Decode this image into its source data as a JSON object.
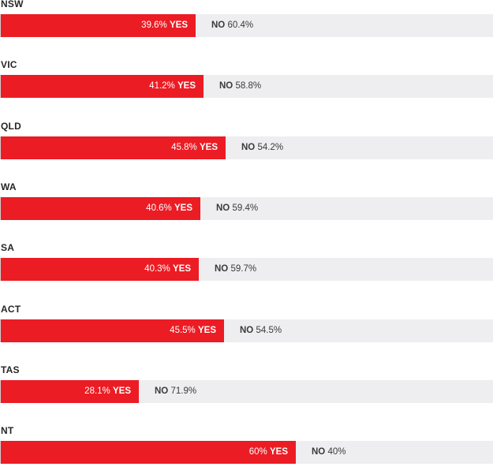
{
  "chart_data": {
    "type": "bar",
    "orientation": "horizontal-stacked",
    "xlim": [
      0,
      100
    ],
    "categories": [
      "NSW",
      "VIC",
      "QLD",
      "WA",
      "SA",
      "ACT",
      "TAS",
      "NT"
    ],
    "series": [
      {
        "name": "YES",
        "values": [
          39.6,
          41.2,
          45.8,
          40.6,
          40.3,
          45.5,
          28.1,
          60
        ]
      },
      {
        "name": "NO",
        "values": [
          60.4,
          58.8,
          54.2,
          59.4,
          59.7,
          54.5,
          71.9,
          40
        ]
      }
    ],
    "yes_labels": [
      "39.6%",
      "41.2%",
      "45.8%",
      "40.6%",
      "40.3%",
      "45.5%",
      "28.1%",
      "60%"
    ],
    "no_labels": [
      "60.4%",
      "58.8%",
      "54.2%",
      "59.4%",
      "59.7%",
      "54.5%",
      "71.9%",
      "40%"
    ],
    "yes_word": "YES",
    "no_word": "NO",
    "colors": {
      "yes": "#ec1c24",
      "no_track": "#eeeef0"
    }
  }
}
